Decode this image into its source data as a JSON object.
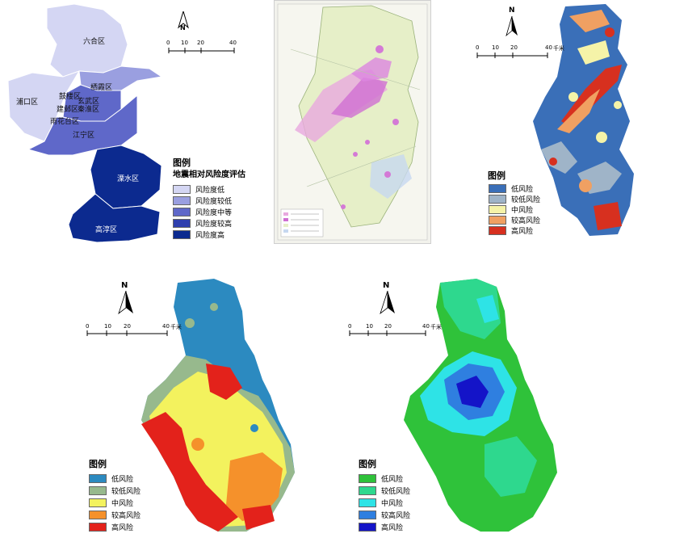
{
  "panel1": {
    "districts": [
      "六合区",
      "栖霞区",
      "浦口区",
      "鼓楼区",
      "玄武区",
      "建邺区",
      "秦淮区",
      "雨花台区",
      "江宁区",
      "溧水区",
      "高淳区"
    ],
    "north": "N",
    "scale": [
      "0",
      "10",
      "20",
      "40"
    ],
    "legend_title": "图例",
    "legend_subtitle": "地震相对风险度评估",
    "legend": [
      {
        "label": "风险度低",
        "color": "#d4d6f3"
      },
      {
        "label": "风险度较低",
        "color": "#9a9fe0"
      },
      {
        "label": "风险度中等",
        "color": "#5f68c9"
      },
      {
        "label": "风险度较高",
        "color": "#2f3fae"
      },
      {
        "label": "风险度高",
        "color": "#0c2a8f"
      }
    ]
  },
  "panel3": {
    "north": "N",
    "scale": [
      "0",
      "10",
      "20",
      "40"
    ],
    "scale_unit": "千米",
    "legend_title": "图例",
    "legend": [
      {
        "label": "低风险",
        "color": "#3a6fb8"
      },
      {
        "label": "较低风险",
        "color": "#9fb4c8"
      },
      {
        "label": "中风险",
        "color": "#f5f3a8"
      },
      {
        "label": "较高风险",
        "color": "#f0a062"
      },
      {
        "label": "高风险",
        "color": "#d7301f"
      }
    ]
  },
  "panel4": {
    "north": "N",
    "scale": [
      "0",
      "10",
      "20",
      "40"
    ],
    "scale_unit": "千米",
    "legend_title": "图例",
    "legend": [
      {
        "label": "低风险",
        "color": "#2c8ac0"
      },
      {
        "label": "较低风险",
        "color": "#97b98d"
      },
      {
        "label": "中风险",
        "color": "#f3f25e"
      },
      {
        "label": "较高风险",
        "color": "#f5912b"
      },
      {
        "label": "高风险",
        "color": "#e3221b"
      }
    ]
  },
  "panel5": {
    "north": "N",
    "scale": [
      "0",
      "10",
      "20",
      "40"
    ],
    "scale_unit": "千米",
    "legend_title": "图例",
    "legend": [
      {
        "label": "低风险",
        "color": "#2fc23a"
      },
      {
        "label": "较低风险",
        "color": "#2ed88e"
      },
      {
        "label": "中风险",
        "color": "#2ee3e6"
      },
      {
        "label": "较高风险",
        "color": "#2f7fe0"
      },
      {
        "label": "高风险",
        "color": "#1414c8"
      }
    ]
  }
}
